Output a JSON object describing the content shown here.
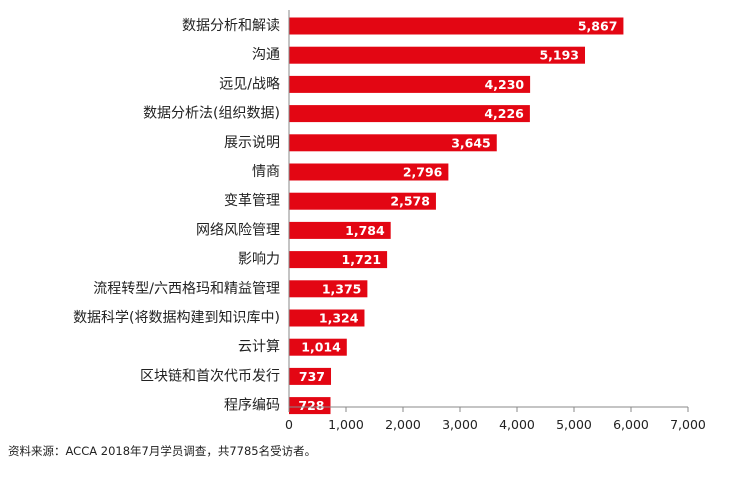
{
  "chart_data": {
    "type": "bar",
    "orientation": "horizontal",
    "categories": [
      "数据分析和解读",
      "沟通",
      "远见/战略",
      "数据分析法(组织数据)",
      "展示说明",
      "情商",
      "变革管理",
      "网络风险管理",
      "影响力",
      "流程转型/六西格玛和精益管理",
      "数据科学(将数据构建到知识库中)",
      "云计算",
      "区块链和首次代币发行",
      "程序编码"
    ],
    "values": [
      5867,
      5193,
      4230,
      4226,
      3645,
      2796,
      2578,
      1784,
      1721,
      1375,
      1324,
      1014,
      737,
      728
    ],
    "data_labels": [
      "5,867",
      "5,193",
      "4,230",
      "4,226",
      "3,645",
      "2,796",
      "2,578",
      "1,784",
      "1,721",
      "1,375",
      "1,324",
      "1,014",
      "737",
      "728"
    ],
    "x_ticks": [
      0,
      1000,
      2000,
      3000,
      4000,
      5000,
      6000,
      7000
    ],
    "x_tick_labels": [
      "0",
      "1,000",
      "2,000",
      "3,000",
      "4,000",
      "5,000",
      "6,000",
      "7,000"
    ],
    "xlim": [
      0,
      7000
    ],
    "title": "",
    "xlabel": "",
    "ylabel": "",
    "grid": false,
    "legend": "none",
    "bar_color": "#e30613"
  },
  "source_note": "资料来源：ACCA 2018年7月学员调查，共7785名受访者。"
}
